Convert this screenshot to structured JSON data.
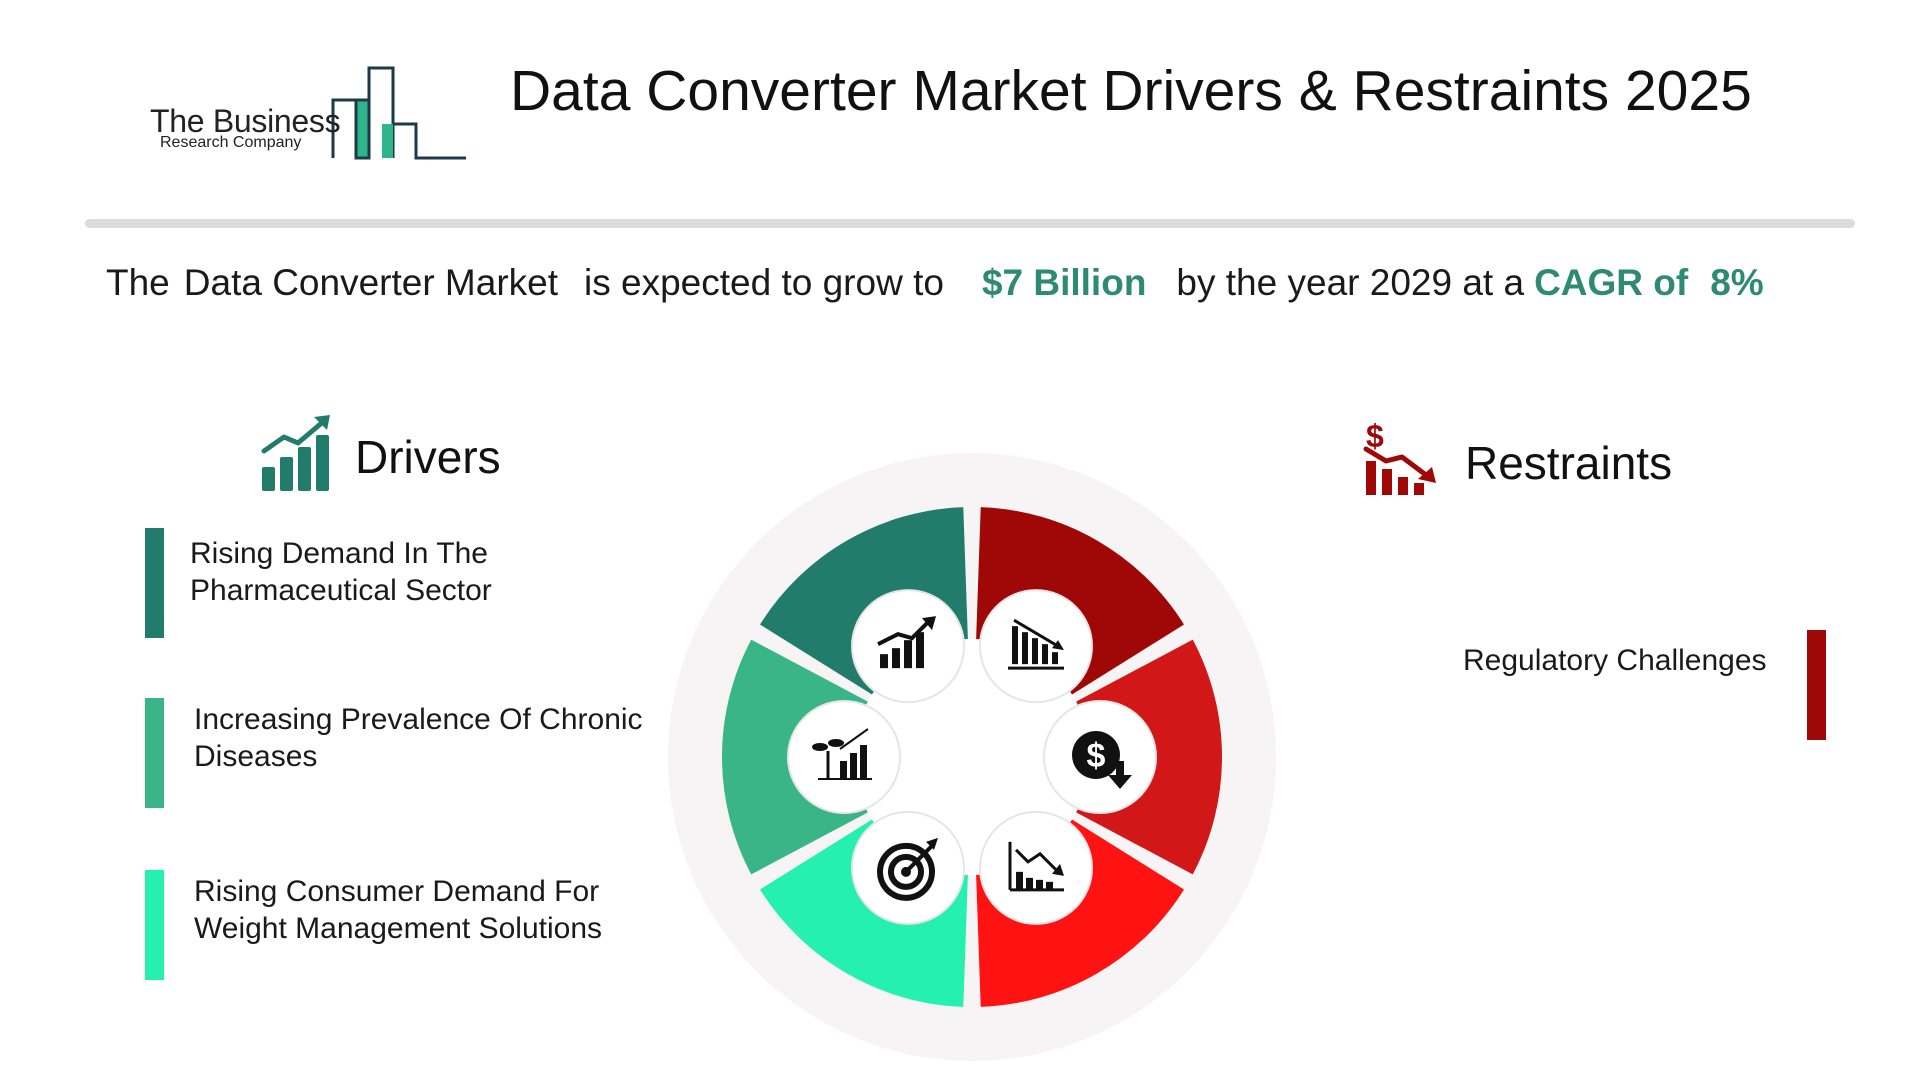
{
  "logo": {
    "line1": "The Business",
    "line2": "Research Company"
  },
  "title": "Data Converter Market Drivers & Restraints 2025",
  "headline": {
    "prefix": "The",
    "market": "Data Converter Market",
    "mid": "is expected to grow to",
    "value": "$7 Billion",
    "year_text": "by the year 2029 at a",
    "cagr_label": "CAGR of",
    "cagr_value": "8%"
  },
  "drivers": {
    "heading": "Drivers",
    "items": [
      {
        "line1": "Rising Demand In The",
        "line2": "Pharmaceutical Sector",
        "color": "#217c6b"
      },
      {
        "line1": "Increasing Prevalence Of Chronic",
        "line2": "Diseases",
        "color": "#39b587"
      },
      {
        "line1": "Rising Consumer Demand For",
        "line2": "Weight Management Solutions",
        "color": "#25f0ad"
      }
    ]
  },
  "restraints": {
    "heading": "Restraints",
    "items": [
      {
        "label": "Regulatory Challenges",
        "color": "#a00707"
      }
    ]
  },
  "colors": {
    "accent_green": "#2e8a73",
    "driver_dark": "#217c6b",
    "driver_mid": "#39b587",
    "driver_light": "#25f0ad",
    "restraint_dark": "#a00707",
    "restraint_mid": "#d11717",
    "restraint_light": "#ff1212"
  },
  "wheel_icons": [
    "growth-chart-icon",
    "plant-growth-chart-icon",
    "target-icon",
    "declining-bars-icon",
    "dollar-down-icon",
    "declining-chart-icon"
  ]
}
